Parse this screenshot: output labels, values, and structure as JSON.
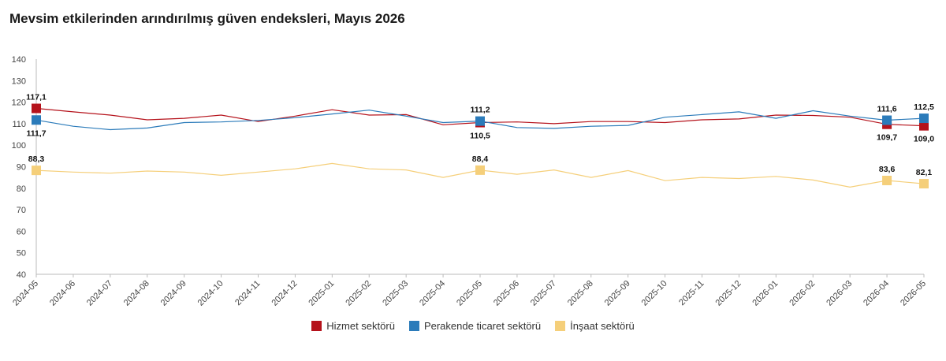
{
  "title": "Mevsim etkilerinden arındırılmış güven endeksleri, Mayıs 2026",
  "chart_data": {
    "type": "line",
    "title": "Mevsim etkilerinden arındırılmış güven endeksleri, Mayıs 2026",
    "xlabel": "",
    "ylabel": "",
    "ylim": [
      40,
      140
    ],
    "yticks": [
      40,
      50,
      60,
      70,
      80,
      90,
      100,
      110,
      120,
      130,
      140
    ],
    "grid": false,
    "legend_position": "bottom",
    "x": [
      "2024-05",
      "2024-06",
      "2024-07",
      "2024-08",
      "2024-09",
      "2024-10",
      "2024-11",
      "2024-12",
      "2025-01",
      "2025-02",
      "2025-03",
      "2025-04",
      "2025-05",
      "2025-06",
      "2025-07",
      "2025-08",
      "2025-09",
      "2025-10",
      "2025-11",
      "2025-12",
      "2026-01",
      "2026-02",
      "2026-03",
      "2026-04",
      "2026-05"
    ],
    "series": [
      {
        "name": "Hizmet sektörü",
        "color": "#b5121b",
        "values": [
          117.1,
          115.5,
          114.0,
          111.8,
          112.5,
          114.0,
          111.0,
          113.5,
          116.5,
          114.0,
          114.2,
          109.5,
          110.5,
          110.8,
          110.0,
          111.0,
          111.0,
          110.5,
          111.8,
          112.2,
          114.0,
          113.8,
          113.0,
          109.7,
          109.0
        ],
        "labels": [
          {
            "index": 0,
            "text": "117,1",
            "pos": "above"
          },
          {
            "index": 12,
            "text": "110,5",
            "pos": "below"
          },
          {
            "index": 23,
            "text": "109,7",
            "pos": "below"
          },
          {
            "index": 24,
            "text": "109,0",
            "pos": "below"
          }
        ]
      },
      {
        "name": "Perakende ticaret sektörü",
        "color": "#2b7bba",
        "values": [
          111.7,
          108.8,
          107.2,
          108.0,
          110.5,
          110.8,
          111.5,
          112.8,
          114.5,
          116.3,
          113.5,
          110.5,
          111.2,
          108.2,
          107.8,
          108.8,
          109.2,
          113.0,
          114.2,
          115.5,
          112.5,
          116.0,
          113.5,
          111.6,
          112.5
        ],
        "labels": [
          {
            "index": 0,
            "text": "111,7",
            "pos": "below"
          },
          {
            "index": 12,
            "text": "111,2",
            "pos": "above"
          },
          {
            "index": 23,
            "text": "111,6",
            "pos": "above"
          },
          {
            "index": 24,
            "text": "112,5",
            "pos": "above"
          }
        ]
      },
      {
        "name": "İnşaat sektörü",
        "color": "#f5cf7a",
        "values": [
          88.3,
          87.5,
          87.0,
          88.0,
          87.5,
          86.0,
          87.5,
          89.0,
          91.5,
          89.0,
          88.5,
          85.0,
          88.4,
          86.5,
          88.5,
          85.0,
          88.2,
          83.5,
          85.0,
          84.5,
          85.5,
          83.8,
          80.5,
          83.6,
          82.1
        ],
        "labels": [
          {
            "index": 0,
            "text": "88,3",
            "pos": "above"
          },
          {
            "index": 12,
            "text": "88,4",
            "pos": "above"
          },
          {
            "index": 23,
            "text": "83,6",
            "pos": "above"
          },
          {
            "index": 24,
            "text": "82,1",
            "pos": "above"
          }
        ]
      }
    ]
  }
}
